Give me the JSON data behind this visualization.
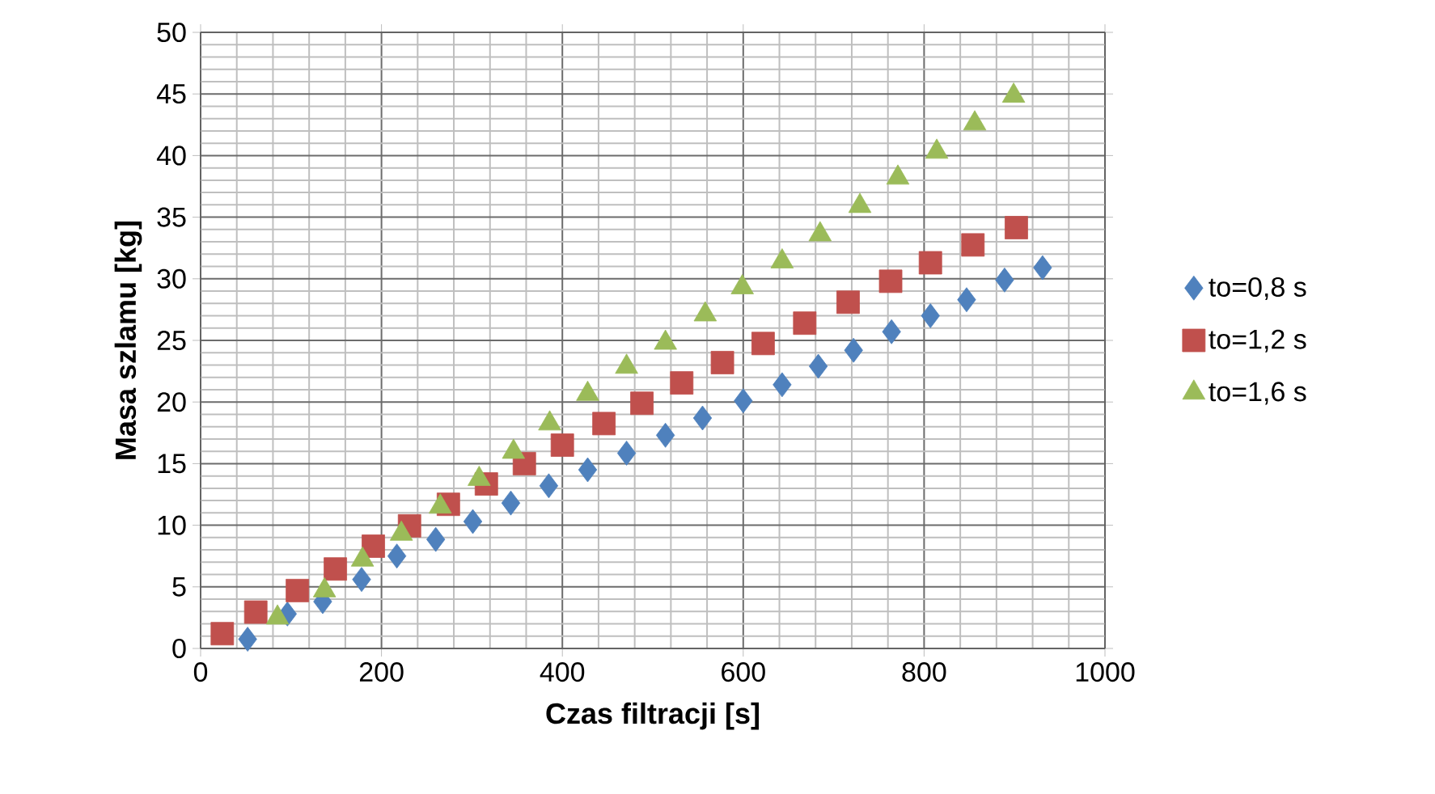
{
  "chart_data": {
    "type": "scatter",
    "xlabel": "Czas filtracji [s]",
    "ylabel": "Masa szlamu [kg]",
    "xlim": [
      0,
      1000
    ],
    "xticks": [
      0,
      200,
      400,
      600,
      800,
      1000
    ],
    "ylim": [
      0,
      50
    ],
    "yticks": [
      0,
      5,
      10,
      15,
      20,
      25,
      30,
      35,
      40,
      45,
      50
    ],
    "grid": true,
    "legend": "right",
    "series": [
      {
        "name": "to=0,8 s",
        "color": "#4f81bd",
        "marker": "diamond",
        "x": [
          52,
          96,
          135,
          178,
          217,
          260,
          301,
          343,
          385,
          428,
          471,
          514,
          555,
          600,
          643,
          683,
          722,
          764,
          807,
          847,
          889,
          931
        ],
        "values": [
          0.75,
          2.8,
          3.8,
          5.6,
          7.5,
          8.85,
          10.3,
          11.8,
          13.2,
          14.5,
          15.85,
          17.3,
          18.7,
          20.1,
          21.4,
          22.9,
          24.2,
          25.7,
          27.0,
          28.3,
          29.9,
          30.9
        ]
      },
      {
        "name": "to=1,2 s",
        "color": "#c0504d",
        "marker": "square",
        "x": [
          24,
          61,
          107,
          149,
          191,
          231,
          274,
          316,
          358,
          400,
          446,
          488,
          532,
          577,
          622,
          668,
          716,
          763,
          807,
          854,
          902
        ],
        "values": [
          1.2,
          2.95,
          4.7,
          6.45,
          8.3,
          9.95,
          11.7,
          13.35,
          15.0,
          16.5,
          18.25,
          19.9,
          21.55,
          23.2,
          24.75,
          26.4,
          28.1,
          29.8,
          31.3,
          32.75,
          34.15
        ]
      },
      {
        "name": "to=1,6 s",
        "color": "#9bbb59",
        "marker": "triangle",
        "x": [
          85,
          137,
          179,
          222,
          265,
          308,
          346,
          386,
          428,
          471,
          514,
          558,
          599,
          643,
          685,
          729,
          771,
          814,
          856,
          899
        ],
        "values": [
          2.5,
          4.7,
          7.2,
          9.3,
          11.5,
          13.75,
          15.95,
          18.25,
          20.65,
          22.85,
          24.8,
          27.1,
          29.3,
          31.4,
          33.6,
          35.9,
          38.2,
          40.3,
          42.6,
          44.85
        ]
      }
    ]
  }
}
